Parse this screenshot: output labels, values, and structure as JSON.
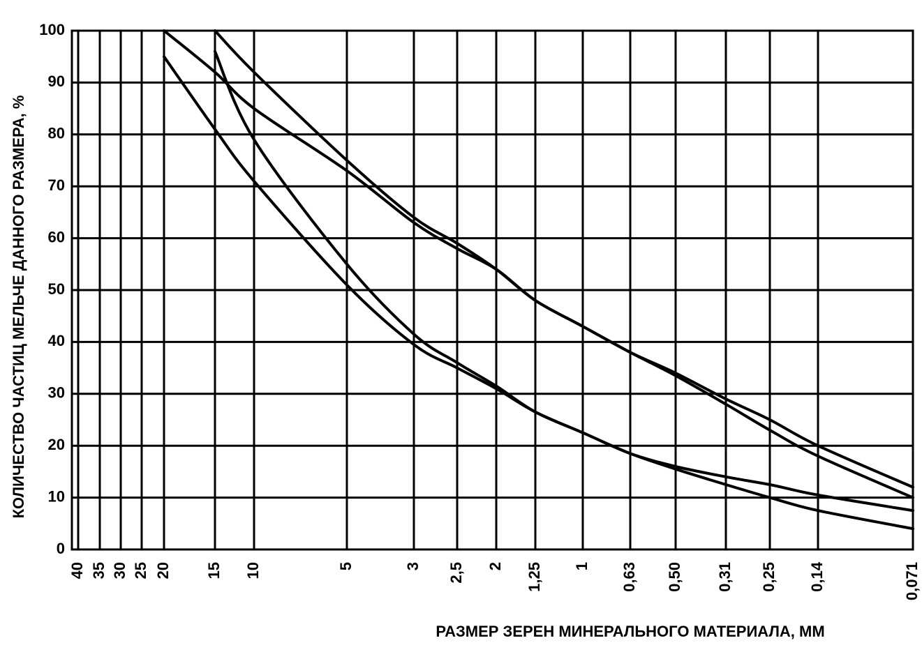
{
  "chart_data": {
    "type": "line",
    "title": "",
    "xlabel": "РАЗМЕР ЗЕРЕН  МИНЕРАЛЬНОГО МАТЕРИАЛА, ММ",
    "ylabel": "КОЛИЧЕСТВО ЧАСТИЦ МЕЛЬЧЕ ДАННОГО РАЗМЕРА, %",
    "ylim": [
      0,
      100
    ],
    "yticks": [
      "0",
      "10",
      "20",
      "30",
      "40",
      "50",
      "60",
      "70",
      "80",
      "90",
      "100"
    ],
    "y_tick_values": [
      0,
      10,
      20,
      30,
      40,
      50,
      60,
      70,
      80,
      90,
      100
    ],
    "x_categories": [
      "40",
      "35",
      "30",
      "25",
      "20",
      "15",
      "10",
      "5",
      "3",
      "2,5",
      "2",
      "1,25",
      "1",
      "0,63",
      "0,50",
      "0,31",
      "0,25",
      "0,14",
      "0,071"
    ],
    "grid": true,
    "series": [
      {
        "x": [
          "20",
          "15",
          "10",
          "5",
          "3",
          "2,5",
          "2",
          "1,25",
          "1",
          "0,63",
          "0,50",
          "0,31",
          "0,25",
          "0,14",
          "0,071"
        ],
        "values": [
          100,
          92,
          85,
          73,
          63,
          58,
          54,
          48,
          43,
          38,
          33.5,
          28,
          23,
          18,
          10
        ]
      },
      {
        "x": [
          "15",
          "10",
          "5",
          "3",
          "2,5",
          "2",
          "1,25",
          "1",
          "0,63",
          "0,50",
          "0,31",
          "0,25",
          "0,14",
          "0,071"
        ],
        "values": [
          100,
          92,
          75,
          64,
          59,
          54,
          48,
          43,
          38,
          34,
          29,
          25,
          20,
          12
        ]
      },
      {
        "x": [
          "20",
          "15",
          "10",
          "5",
          "3",
          "2,5",
          "2",
          "1,25",
          "1",
          "0,63",
          "0,50",
          "0,31",
          "0,25",
          "0,14",
          "0,071"
        ],
        "values": [
          95,
          81,
          71,
          51,
          39.5,
          35,
          31,
          26.5,
          22.5,
          18.5,
          16,
          14,
          12.5,
          10.5,
          7.5
        ]
      },
      {
        "x": [
          "15",
          "10",
          "5",
          "3",
          "2,5",
          "2",
          "1,25",
          "1",
          "0,63",
          "0,50",
          "0,31",
          "0,25",
          "0,14",
          "0,071"
        ],
        "values": [
          96,
          79,
          55,
          41.5,
          36,
          31.5,
          26.5,
          22.5,
          18.5,
          15.5,
          12.5,
          10,
          7.5,
          4
        ]
      }
    ]
  }
}
